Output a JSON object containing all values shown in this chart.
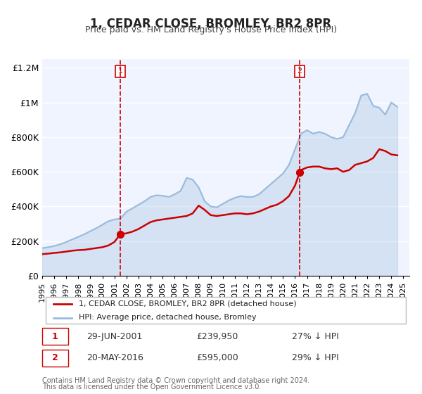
{
  "title": "1, CEDAR CLOSE, BROMLEY, BR2 8PR",
  "subtitle": "Price paid vs. HM Land Registry's House Price Index (HPI)",
  "xlabel": "",
  "ylabel": "",
  "ylim": [
    0,
    1250000
  ],
  "yticks": [
    0,
    200000,
    400000,
    600000,
    800000,
    1000000,
    1200000
  ],
  "ytick_labels": [
    "£0",
    "£200K",
    "£400K",
    "£600K",
    "£800K",
    "£1M",
    "£1.2M"
  ],
  "xlim_start": 1995.0,
  "xlim_end": 2025.5,
  "background_color": "#f0f4ff",
  "plot_bg_color": "#f0f4ff",
  "grid_color": "#ffffff",
  "property_color": "#cc0000",
  "hpi_color": "#99bbdd",
  "property_label": "1, CEDAR CLOSE, BROMLEY, BR2 8PR (detached house)",
  "hpi_label": "HPI: Average price, detached house, Bromley",
  "sale1_date": 2001.49,
  "sale1_price": 239950,
  "sale1_label": "29-JUN-2001",
  "sale1_pct": "27% ↓ HPI",
  "sale2_date": 2016.38,
  "sale2_price": 595000,
  "sale2_label": "20-MAY-2016",
  "sale2_pct": "29% ↓ HPI",
  "footer1": "Contains HM Land Registry data © Crown copyright and database right 2024.",
  "footer2": "This data is licensed under the Open Government Licence v3.0.",
  "property_x": [
    1995.0,
    1995.5,
    1996.0,
    1996.5,
    1997.0,
    1997.5,
    1998.0,
    1998.5,
    1999.0,
    1999.5,
    2000.0,
    2000.5,
    2001.0,
    2001.49,
    2001.49,
    2002.0,
    2002.5,
    2003.0,
    2003.5,
    2004.0,
    2004.5,
    2005.0,
    2005.5,
    2006.0,
    2006.5,
    2007.0,
    2007.5,
    2008.0,
    2008.5,
    2009.0,
    2009.5,
    2010.0,
    2010.5,
    2011.0,
    2011.5,
    2012.0,
    2012.5,
    2013.0,
    2013.5,
    2014.0,
    2014.5,
    2015.0,
    2015.5,
    2016.0,
    2016.38,
    2016.38,
    2016.5,
    2017.0,
    2017.5,
    2018.0,
    2018.5,
    2019.0,
    2019.5,
    2020.0,
    2020.5,
    2021.0,
    2021.5,
    2022.0,
    2022.5,
    2023.0,
    2023.5,
    2024.0,
    2024.5
  ],
  "property_y": [
    125000,
    128000,
    132000,
    135000,
    140000,
    145000,
    148000,
    150000,
    155000,
    160000,
    165000,
    175000,
    195000,
    239950,
    239950,
    245000,
    255000,
    270000,
    290000,
    310000,
    320000,
    325000,
    330000,
    335000,
    340000,
    345000,
    360000,
    405000,
    380000,
    350000,
    345000,
    350000,
    355000,
    360000,
    360000,
    355000,
    360000,
    370000,
    385000,
    400000,
    410000,
    430000,
    460000,
    520000,
    595000,
    595000,
    610000,
    625000,
    630000,
    630000,
    620000,
    615000,
    620000,
    600000,
    610000,
    640000,
    650000,
    660000,
    680000,
    730000,
    720000,
    700000,
    695000
  ],
  "hpi_x": [
    1995.0,
    1995.5,
    1996.0,
    1996.5,
    1997.0,
    1997.5,
    1998.0,
    1998.5,
    1999.0,
    1999.5,
    2000.0,
    2000.5,
    2001.0,
    2001.5,
    2002.0,
    2002.5,
    2003.0,
    2003.5,
    2004.0,
    2004.5,
    2005.0,
    2005.5,
    2006.0,
    2006.5,
    2007.0,
    2007.5,
    2008.0,
    2008.5,
    2009.0,
    2009.5,
    2010.0,
    2010.5,
    2011.0,
    2011.5,
    2012.0,
    2012.5,
    2013.0,
    2013.5,
    2014.0,
    2014.5,
    2015.0,
    2015.5,
    2016.0,
    2016.5,
    2017.0,
    2017.5,
    2018.0,
    2018.5,
    2019.0,
    2019.5,
    2020.0,
    2020.5,
    2021.0,
    2021.5,
    2022.0,
    2022.5,
    2023.0,
    2023.5,
    2024.0,
    2024.5
  ],
  "hpi_y": [
    160000,
    165000,
    172000,
    182000,
    195000,
    210000,
    225000,
    240000,
    258000,
    275000,
    295000,
    315000,
    325000,
    330000,
    370000,
    390000,
    410000,
    430000,
    455000,
    465000,
    462000,
    455000,
    470000,
    490000,
    565000,
    555000,
    510000,
    430000,
    400000,
    395000,
    415000,
    435000,
    450000,
    460000,
    455000,
    455000,
    470000,
    500000,
    530000,
    560000,
    590000,
    640000,
    730000,
    820000,
    840000,
    820000,
    830000,
    820000,
    800000,
    790000,
    800000,
    870000,
    940000,
    1040000,
    1050000,
    980000,
    970000,
    930000,
    1000000,
    975000
  ]
}
